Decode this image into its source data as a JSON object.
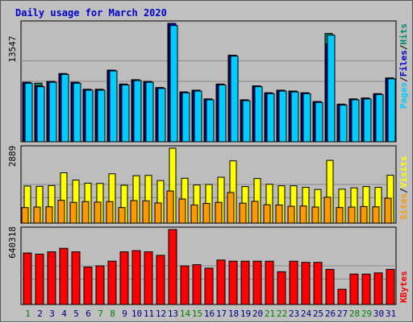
{
  "title": "Daily usage for March 2020",
  "colors": {
    "background": "#c0c0c0",
    "panel": "#bdbdbd",
    "title": "#0000cc",
    "hits": "#008866",
    "files": "#0000cc",
    "pages": "#00ccff",
    "visits": "#ffff00",
    "sites": "#ff9900",
    "kbytes": "#ff0000",
    "weekday_label": "#000080",
    "weekend_label": "#008000"
  },
  "chart_data": [
    {
      "type": "bar",
      "panel": "hits-files-pages",
      "ylabel_tick": "13547",
      "ylim": [
        0,
        13547
      ],
      "series_labels": {
        "pages": "Pages",
        "files": "Files",
        "hits": "Hits"
      },
      "separator": "/",
      "categories": [
        "1",
        "2",
        "3",
        "4",
        "5",
        "6",
        "7",
        "8",
        "9",
        "10",
        "11",
        "12",
        "13",
        "14",
        "15",
        "16",
        "17",
        "18",
        "19",
        "20",
        "21",
        "22",
        "23",
        "24",
        "25",
        "26",
        "27",
        "28",
        "29",
        "30",
        "31"
      ],
      "series": [
        {
          "name": "Hits",
          "values": [
            6800,
            6700,
            6900,
            7800,
            6800,
            6000,
            6000,
            8200,
            6600,
            7100,
            6900,
            6200,
            13547,
            5700,
            5900,
            4900,
            6600,
            9900,
            4800,
            6400,
            5600,
            5900,
            5800,
            5600,
            4600,
            12400,
            4300,
            4900,
            5000,
            5500,
            7300
          ]
        },
        {
          "name": "Files",
          "values": [
            6800,
            6400,
            6900,
            7800,
            6800,
            6000,
            6000,
            8200,
            6600,
            7100,
            6900,
            6200,
            13547,
            5700,
            5900,
            4900,
            6600,
            9900,
            4800,
            6400,
            5600,
            5900,
            5800,
            5600,
            4600,
            11200,
            4300,
            4900,
            5000,
            5500,
            7300
          ]
        },
        {
          "name": "Pages",
          "values": [
            6700,
            6300,
            6800,
            7700,
            6700,
            5900,
            5900,
            8100,
            6500,
            7000,
            6800,
            6100,
            13300,
            5600,
            5800,
            4800,
            6500,
            9800,
            4700,
            6300,
            5500,
            5800,
            5700,
            5500,
            4500,
            12200,
            4200,
            4800,
            4900,
            5400,
            7200
          ]
        }
      ],
      "weekend_days": [
        "1",
        "7",
        "8",
        "14",
        "15",
        "21",
        "22",
        "28",
        "29"
      ]
    },
    {
      "type": "bar",
      "panel": "visits-sites",
      "ylabel_tick": "2889",
      "ylim": [
        0,
        2889
      ],
      "series_labels": {
        "sites": "Sites",
        "visits": "Visits"
      },
      "separator": "/",
      "series": [
        {
          "name": "Visits",
          "values": [
            1430,
            1420,
            1450,
            1940,
            1660,
            1540,
            1530,
            1900,
            1460,
            1830,
            1840,
            1640,
            2889,
            1730,
            1470,
            1490,
            1770,
            2400,
            1410,
            1720,
            1500,
            1440,
            1440,
            1380,
            1300,
            2420,
            1310,
            1360,
            1410,
            1380,
            1850
          ]
        },
        {
          "name": "Sites",
          "values": [
            600,
            620,
            630,
            880,
            800,
            830,
            810,
            830,
            600,
            870,
            860,
            780,
            1240,
            930,
            700,
            760,
            800,
            1180,
            770,
            840,
            710,
            700,
            650,
            660,
            620,
            1000,
            600,
            620,
            640,
            630,
            960
          ]
        }
      ]
    },
    {
      "type": "bar",
      "panel": "kbytes",
      "ylabel_tick": "640318",
      "ylim": [
        0,
        640318
      ],
      "series_labels": {
        "kbytes": "KBytes"
      },
      "series": [
        {
          "name": "KBytes",
          "values": [
            440000,
            430000,
            450000,
            480000,
            450000,
            320000,
            330000,
            370000,
            450000,
            460000,
            450000,
            420000,
            640318,
            330000,
            340000,
            310000,
            380000,
            370000,
            370000,
            370000,
            370000,
            280000,
            370000,
            360000,
            360000,
            300000,
            130000,
            260000,
            260000,
            270000,
            300000
          ]
        }
      ]
    }
  ]
}
